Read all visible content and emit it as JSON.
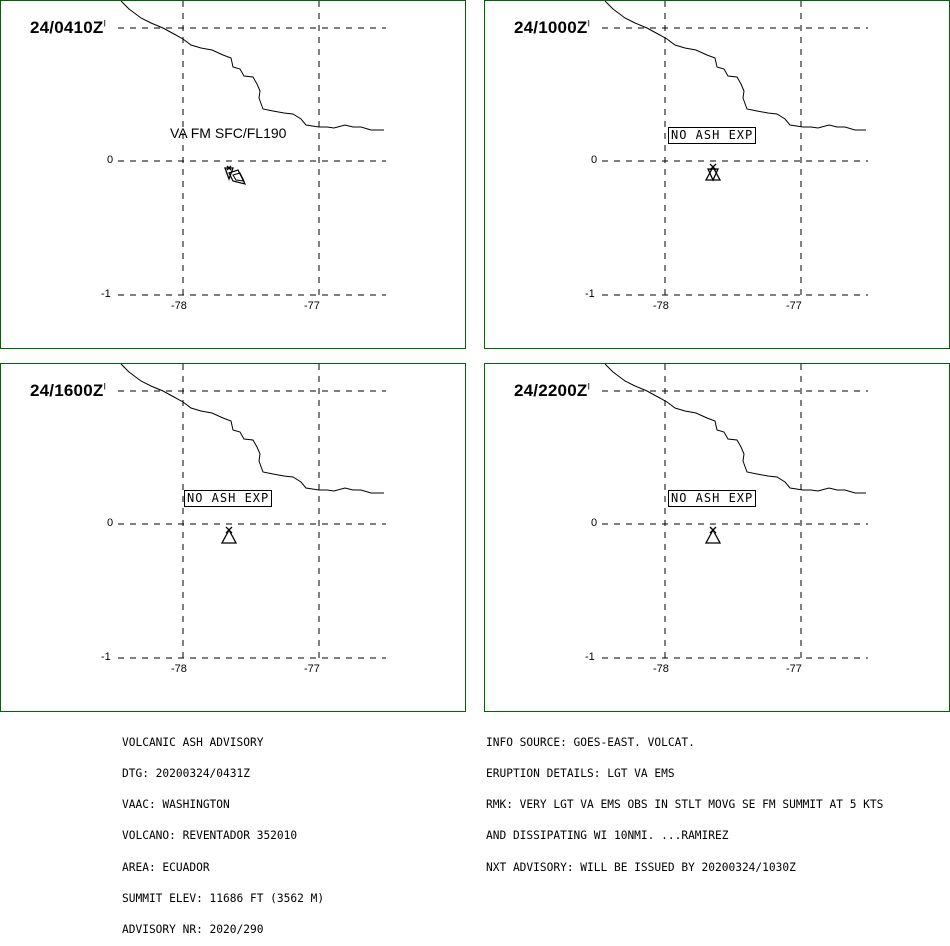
{
  "panels": [
    {
      "time": "24/0410Z",
      "label": "VA FM SFC/FL190",
      "label_boxed": false
    },
    {
      "time": "24/1000Z",
      "label": "NO ASH EXP",
      "label_boxed": true
    },
    {
      "time": "24/1600Z",
      "label": "NO ASH EXP",
      "label_boxed": true
    },
    {
      "time": "24/2200Z",
      "label": "NO ASH EXP",
      "label_boxed": true
    }
  ],
  "axes": {
    "lat_labels": [
      "0",
      "-1"
    ],
    "lon_labels": [
      "-78",
      "-77"
    ]
  },
  "advisory_left": [
    "VOLCANIC ASH ADVISORY",
    "DTG: 20200324/0431Z",
    "VAAC: WASHINGTON",
    "VOLCANO: REVENTADOR 352010",
    "AREA: ECUADOR",
    "SUMMIT ELEV: 11686 FT (3562 M)",
    "ADVISORY NR: 2020/290"
  ],
  "advisory_right": [
    "INFO SOURCE: GOES-EAST. VOLCAT.",
    "ERUPTION DETAILS: LGT VA EMS",
    "RMK: VERY LGT VA EMS OBS IN STLT MOVG SE FM SUMMIT AT 5 KTS",
    "AND DISSIPATING WI 10NMI. ...RAMIREZ",
    "NXT ADVISORY: WILL BE ISSUED BY 20200324/1030Z"
  ],
  "colors": {
    "border": "#006400",
    "lines": "#000000"
  },
  "icons": {
    "volcano": "volcano-triangle-icon"
  }
}
